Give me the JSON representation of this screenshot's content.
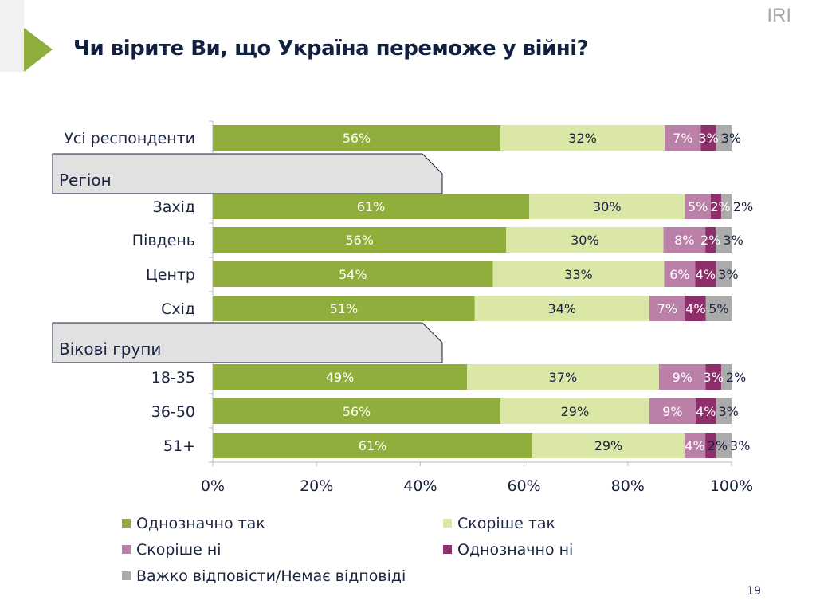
{
  "header": {
    "title": "Чи вірите Ви, що Україна переможе у війні?",
    "logo": "IRI",
    "page_number": "19"
  },
  "chart_data": {
    "type": "bar",
    "orientation": "horizontal",
    "stacked": true,
    "xlim": [
      0,
      100
    ],
    "x_ticks": [
      "0%",
      "20%",
      "40%",
      "60%",
      "80%",
      "100%"
    ],
    "groups": [
      {
        "label": "Регіон",
        "before_category": "Захід"
      },
      {
        "label": "Вікові групи",
        "before_category": "18-35"
      }
    ],
    "categories": [
      "Усі респонденти",
      "Захід",
      "Південь",
      "Центр",
      "Схід",
      "18-35",
      "36-50",
      "51+"
    ],
    "series": [
      {
        "name": "Однозначно так",
        "color": "#8FAE3C",
        "values": [
          56,
          61,
          56,
          54,
          51,
          49,
          56,
          61
        ]
      },
      {
        "name": "Скоріше так",
        "color": "#DAE7A6",
        "values": [
          32,
          30,
          30,
          33,
          34,
          37,
          29,
          29
        ]
      },
      {
        "name": "Скоріше ні",
        "color": "#BB80A8",
        "values": [
          7,
          5,
          8,
          6,
          7,
          9,
          9,
          4
        ]
      },
      {
        "name": "Однозначно ні",
        "color": "#8E2F6C",
        "values": [
          3,
          2,
          2,
          4,
          4,
          3,
          4,
          2
        ]
      },
      {
        "name": "Важко відповісти/Немає відповіді",
        "color": "#ABABAB",
        "values": [
          3,
          2,
          3,
          3,
          5,
          2,
          3,
          3
        ]
      }
    ],
    "legend_position": "bottom",
    "grid": false
  }
}
